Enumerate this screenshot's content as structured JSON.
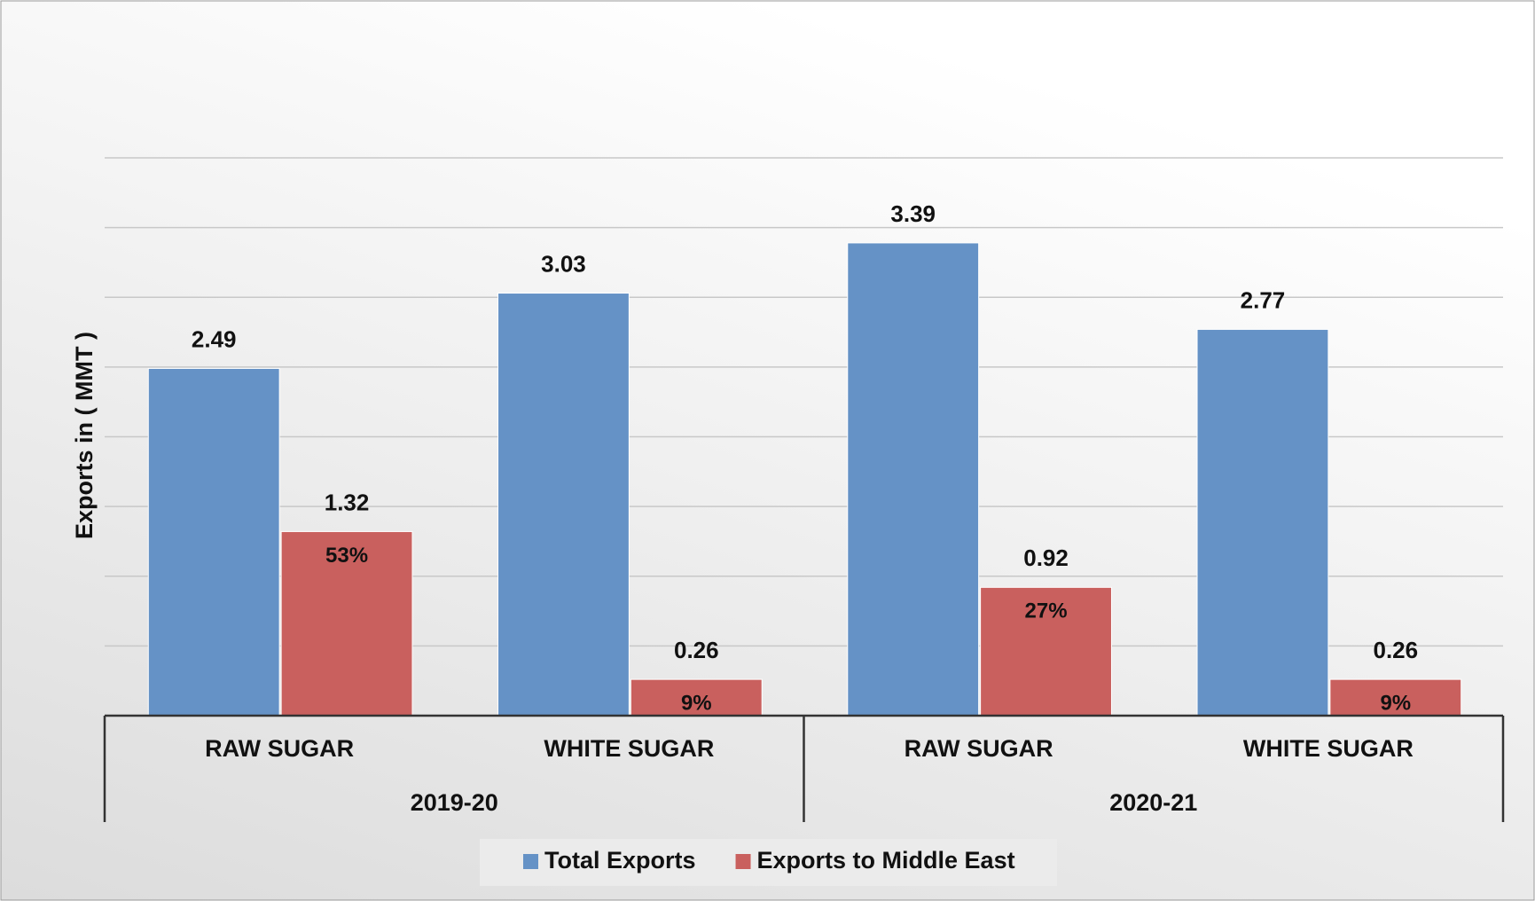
{
  "chart_data": {
    "type": "bar",
    "y_label": "Exports in ( MMT )",
    "categories": [
      "RAW SUGAR",
      "WHITE SUGAR",
      "RAW SUGAR",
      "WHITE SUGAR"
    ],
    "groups": [
      "2019-20",
      "2020-21"
    ],
    "series": [
      {
        "name": "Total Exports",
        "color": "#6592c6",
        "values": [
          2.49,
          3.03,
          3.39,
          2.77
        ]
      },
      {
        "name": "Exports to Middle East",
        "color": "#c9605e",
        "values": [
          1.32,
          0.26,
          0.92,
          0.26
        ],
        "percent_labels": [
          "53%",
          "9%",
          "27%",
          "9%"
        ]
      }
    ],
    "ylim": [
      0,
      4
    ],
    "yticks": [
      0,
      0.5,
      1,
      1.5,
      2,
      2.5,
      3,
      3.5,
      4
    ],
    "grid": true,
    "legend": "bottom"
  }
}
